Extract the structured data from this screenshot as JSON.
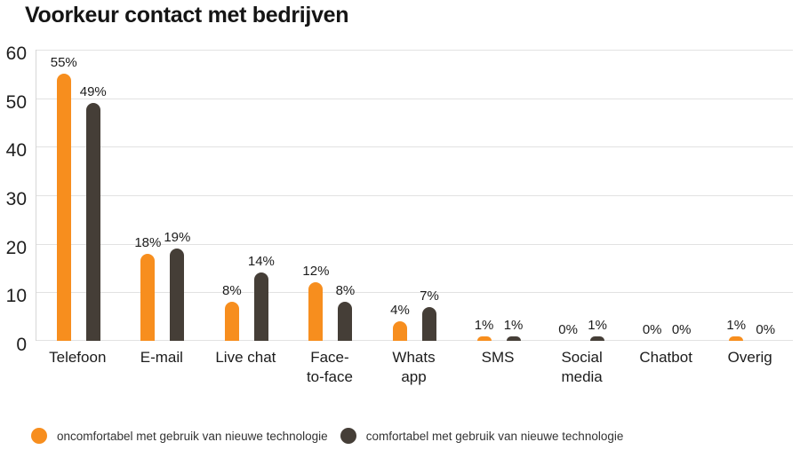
{
  "chart_data": {
    "type": "bar",
    "title": "Voorkeur contact met bedrijven",
    "categories": [
      "Telefoon",
      "E-mail",
      "Live chat",
      "Face-\nto-face",
      "Whats\napp",
      "SMS",
      "Social\nmedia",
      "Chatbot",
      "Overig"
    ],
    "series": [
      {
        "name": "oncomfortabel met gebruik van nieuwe technologie",
        "color": "#F78E1E",
        "values": [
          55,
          18,
          8,
          12,
          4,
          1,
          0,
          0,
          1
        ]
      },
      {
        "name": "comfortabel met gebruik van nieuwe technologie",
        "color": "#453E37",
        "values": [
          49,
          19,
          14,
          8,
          7,
          1,
          1,
          0,
          0
        ]
      }
    ],
    "value_suffix": "%",
    "xlabel": "",
    "ylabel": "",
    "ylim": [
      0,
      60
    ],
    "yticks": [
      "0",
      "10",
      "20",
      "30",
      "40",
      "50",
      "60"
    ],
    "grid": true,
    "legend_position": "bottom",
    "colors": {
      "grid": "#E2E2E2",
      "axis_border": "#D6D6D6",
      "text": "#1C1C1C",
      "title_text": "#151515"
    }
  }
}
